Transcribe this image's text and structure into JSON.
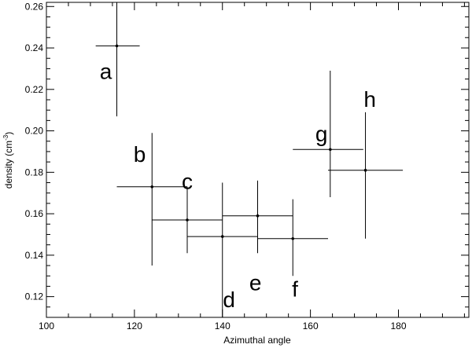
{
  "chart_data": {
    "type": "scatter",
    "xlabel": "Azimuthal angle",
    "ylabel": "density (cm",
    "ylabel_sup": "-3",
    "ylabel_close": ")",
    "xlim": [
      100,
      196
    ],
    "ylim": [
      0.11,
      0.262
    ],
    "x_ticks": [
      100,
      120,
      140,
      160,
      180
    ],
    "x_tick_labels": [
      "100",
      "120",
      "140",
      "160",
      "180"
    ],
    "y_ticks": [
      0.12,
      0.14,
      0.16,
      0.18,
      0.2,
      0.22,
      0.24,
      0.26
    ],
    "y_tick_labels": [
      "0.12",
      "0.14",
      "0.16",
      "0.18",
      "0.20",
      "0.22",
      "0.24",
      "0.26"
    ],
    "grid": false,
    "points": [
      {
        "label": "a",
        "x": 116,
        "y": 0.241,
        "xerr": [
          111.2,
          121.2
        ],
        "yerr": [
          0.207,
          0.262
        ],
        "label_pos": [
          113.5,
          0.225
        ]
      },
      {
        "label": "b",
        "x": 124,
        "y": 0.173,
        "xerr": [
          116,
          132
        ],
        "yerr": [
          0.135,
          0.199
        ],
        "label_pos": [
          121.2,
          0.185
        ]
      },
      {
        "label": "c",
        "x": 132,
        "y": 0.157,
        "xerr": [
          124,
          140
        ],
        "yerr": [
          0.141,
          0.173
        ],
        "label_pos": [
          132,
          0.172
        ]
      },
      {
        "label": "d",
        "x": 140,
        "y": 0.149,
        "xerr": [
          132,
          148
        ],
        "yerr": [
          0.11,
          0.175
        ],
        "label_pos": [
          141.5,
          0.115
        ]
      },
      {
        "label": "e",
        "x": 148,
        "y": 0.159,
        "xerr": [
          140,
          156
        ],
        "yerr": [
          0.141,
          0.176
        ],
        "label_pos": [
          147.5,
          0.123
        ]
      },
      {
        "label": "f",
        "x": 156,
        "y": 0.148,
        "xerr": [
          148,
          164
        ],
        "yerr": [
          0.13,
          0.167
        ],
        "label_pos": [
          156.5,
          0.12
        ]
      },
      {
        "label": "g",
        "x": 164.5,
        "y": 0.191,
        "xerr": [
          156,
          172
        ],
        "yerr": [
          0.168,
          0.229
        ],
        "label_pos": [
          162.5,
          0.195
        ]
      },
      {
        "label": "h",
        "x": 172.5,
        "y": 0.181,
        "xerr": [
          164,
          181
        ],
        "yerr": [
          0.148,
          0.209
        ],
        "label_pos": [
          173.5,
          0.2115
        ]
      }
    ]
  }
}
